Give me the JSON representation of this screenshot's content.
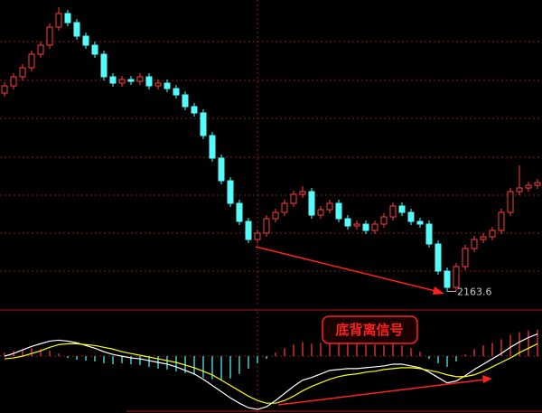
{
  "chart_data": [
    {
      "type": "candlestick",
      "up_color": "#ff3c3c",
      "down_color": "#54fcfc",
      "ylim": [
        2146,
        2486
      ],
      "open": [
        2383,
        2391,
        2401,
        2411,
        2426,
        2436,
        2456,
        2471,
        2461,
        2446,
        2436,
        2426,
        2401,
        2394,
        2398,
        2396,
        2401,
        2391,
        2394,
        2388,
        2381,
        2368,
        2361,
        2336,
        2311,
        2286,
        2261,
        2241,
        2221,
        2228,
        2244,
        2251,
        2261,
        2271,
        2274,
        2248,
        2254,
        2261,
        2244,
        2236,
        2238,
        2231,
        2238,
        2246,
        2258,
        2251,
        2241,
        2238,
        2216,
        2186,
        2168,
        2191,
        2211,
        2221,
        2224,
        2231,
        2251,
        2274,
        2278,
        2281
      ],
      "close": [
        2391,
        2401,
        2411,
        2426,
        2436,
        2456,
        2471,
        2461,
        2446,
        2436,
        2426,
        2401,
        2394,
        2398,
        2396,
        2401,
        2391,
        2394,
        2388,
        2381,
        2368,
        2361,
        2336,
        2311,
        2286,
        2261,
        2241,
        2221,
        2228,
        2244,
        2251,
        2261,
        2271,
        2274,
        2248,
        2254,
        2261,
        2244,
        2236,
        2238,
        2231,
        2238,
        2246,
        2258,
        2251,
        2241,
        2238,
        2216,
        2186,
        2168,
        2191,
        2211,
        2221,
        2224,
        2231,
        2251,
        2274,
        2278,
        2281,
        2284
      ],
      "high": [
        2395,
        2405,
        2415,
        2430,
        2440,
        2460,
        2478,
        2475,
        2465,
        2450,
        2440,
        2430,
        2405,
        2402,
        2402,
        2405,
        2405,
        2398,
        2398,
        2392,
        2385,
        2372,
        2365,
        2340,
        2315,
        2290,
        2265,
        2245,
        2232,
        2248,
        2255,
        2265,
        2275,
        2280,
        2278,
        2258,
        2265,
        2265,
        2248,
        2242,
        2242,
        2242,
        2250,
        2262,
        2262,
        2255,
        2245,
        2242,
        2220,
        2190,
        2195,
        2215,
        2225,
        2228,
        2235,
        2255,
        2278,
        2303,
        2285,
        2288
      ],
      "low": [
        2379,
        2387,
        2397,
        2407,
        2422,
        2432,
        2452,
        2457,
        2442,
        2432,
        2422,
        2397,
        2390,
        2390,
        2392,
        2392,
        2387,
        2387,
        2384,
        2377,
        2364,
        2357,
        2332,
        2307,
        2282,
        2257,
        2237,
        2217,
        2217,
        2224,
        2240,
        2247,
        2257,
        2267,
        2244,
        2244,
        2250,
        2240,
        2232,
        2232,
        2227,
        2227,
        2234,
        2242,
        2247,
        2237,
        2234,
        2212,
        2182,
        2163.6,
        2164,
        2187,
        2207,
        2217,
        2220,
        2227,
        2247,
        2270,
        2274,
        2277
      ]
    },
    {
      "type": "macd",
      "annotation": "底背离信号",
      "ylim": [
        -64,
        50
      ],
      "up_color": "#ff3c3c",
      "down_color": "#54fcfc",
      "bars": [
        4,
        6,
        8,
        9,
        8,
        6,
        3,
        -2,
        -4,
        -5,
        -6,
        -8,
        -9,
        -8,
        -9,
        -10,
        -12,
        -14,
        -15,
        -17,
        -19,
        -21,
        -24,
        -26,
        -27,
        -25,
        -20,
        -14,
        -8,
        -3,
        4,
        9,
        13,
        16,
        14,
        15,
        17,
        15,
        14,
        14,
        13,
        13,
        12,
        14,
        12,
        9,
        5,
        -3,
        -8,
        -12,
        -6,
        2,
        8,
        12,
        15,
        19,
        24,
        27,
        29,
        30
      ],
      "series": [
        {
          "color": "#ffffff",
          "values": [
            0,
            3,
            7,
            11,
            14,
            17,
            18,
            17,
            15,
            12,
            9,
            5,
            2,
            0,
            -2,
            -3,
            -5,
            -7,
            -9,
            -12,
            -16,
            -20,
            -26,
            -33,
            -40,
            -47,
            -53,
            -58,
            -60,
            -57,
            -50,
            -42,
            -34,
            -27,
            -24,
            -20,
            -16,
            -15,
            -14,
            -14,
            -13,
            -12,
            -11,
            -9,
            -9,
            -11,
            -13,
            -18,
            -24,
            -30,
            -28,
            -22,
            -15,
            -9,
            -3,
            3,
            10,
            16,
            21,
            25
          ]
        },
        {
          "color": "#ffff00",
          "values": [
            -3,
            -2,
            0,
            3,
            6,
            10,
            13,
            14,
            14,
            13,
            12,
            10,
            8,
            5,
            3,
            1,
            -1,
            -3,
            -5,
            -7,
            -10,
            -13,
            -17,
            -21,
            -27,
            -33,
            -39,
            -45,
            -50,
            -53,
            -53,
            -50,
            -45,
            -39,
            -34,
            -30,
            -26,
            -23,
            -21,
            -20,
            -18,
            -17,
            -15,
            -14,
            -13,
            -13,
            -14,
            -16,
            -18,
            -21,
            -23,
            -23,
            -21,
            -17,
            -12,
            -7,
            -2,
            4,
            9,
            14
          ]
        }
      ]
    }
  ]
}
